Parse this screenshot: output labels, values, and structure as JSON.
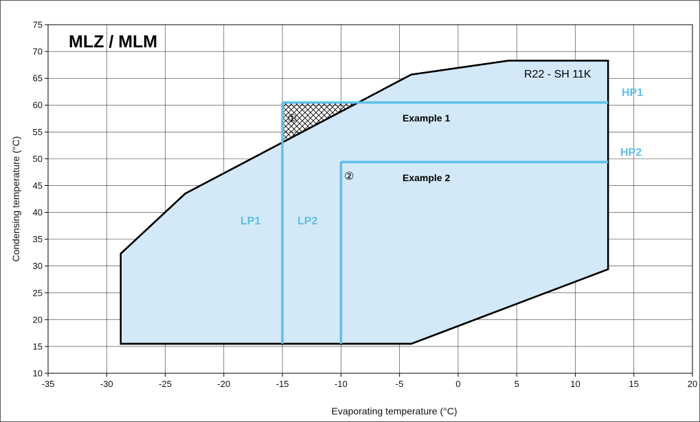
{
  "chart_data": {
    "type": "area",
    "title": "MLZ / MLM",
    "xlabel": "Evaporating temperature (°C)",
    "ylabel": "Condensing temperature (°C)",
    "xlim": [
      -35,
      20
    ],
    "ylim": [
      10,
      75
    ],
    "xticks": [
      -35,
      -30,
      -25,
      -20,
      -15,
      -10,
      -5,
      0,
      5,
      10,
      15,
      20
    ],
    "yticks": [
      10,
      15,
      20,
      25,
      30,
      35,
      40,
      45,
      50,
      55,
      60,
      65,
      70,
      75
    ],
    "grid": true,
    "envelope": {
      "name": "R22 - SH 11K",
      "fill": "#d4e9f7",
      "stroke": "#000000",
      "points": [
        [
          -28.8,
          15.5
        ],
        [
          -4.0,
          15.5
        ],
        [
          12.8,
          29.4
        ],
        [
          12.8,
          68.3
        ],
        [
          4.3,
          68.3
        ],
        [
          -4.0,
          65.7
        ],
        [
          -23.3,
          43.5
        ],
        [
          -28.8,
          32.3
        ]
      ]
    },
    "hatched_region": {
      "points": [
        [
          -15.0,
          60.5
        ],
        [
          -8.5,
          60.5
        ],
        [
          -15.0,
          53.0
        ]
      ]
    },
    "limit_lines": [
      {
        "name": "HP1",
        "axis": "y",
        "value": 60.5,
        "from": -15.0,
        "to": 12.8
      },
      {
        "name": "HP2",
        "axis": "y",
        "value": 49.4,
        "from": -10.0,
        "to": 12.8
      },
      {
        "name": "LP1",
        "axis": "x",
        "value": -15.0,
        "from": 15.5,
        "to": 60.5
      },
      {
        "name": "LP2",
        "axis": "x",
        "value": -10.0,
        "from": 15.5,
        "to": 49.4
      }
    ],
    "annotations": [
      {
        "text": "Example 1",
        "x": -5,
        "y": 57.2
      },
      {
        "text": "Example 2",
        "x": -5,
        "y": 46.7
      },
      {
        "text": "①",
        "x": -14.8,
        "y": 57.5
      },
      {
        "text": "②",
        "x": -9.8,
        "y": 46.6
      }
    ],
    "line_color": "#5bc0eb"
  }
}
